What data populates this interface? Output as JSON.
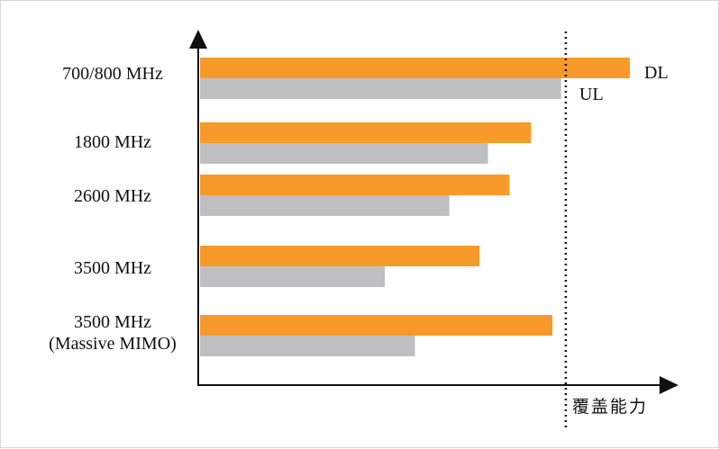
{
  "chart_data": {
    "type": "bar",
    "orientation": "horizontal",
    "categories": [
      "700/800 MHz",
      "1800 MHz",
      "2600 MHz",
      "3500 MHz",
      "3500 MHz\n(Massive MIMO)"
    ],
    "series": [
      {
        "name": "DL",
        "color": "#f79a2b",
        "values": [
          100,
          77,
          72,
          65,
          82
        ]
      },
      {
        "name": "UL",
        "color": "#bfbfc1",
        "values": [
          84,
          67,
          58,
          43,
          50
        ]
      }
    ],
    "reference_line": {
      "value": 85,
      "style": "dotted"
    },
    "xlabel": "覆盖能力",
    "ylabel": "",
    "xlim": [
      0,
      100
    ],
    "grid": false,
    "legend": "inline-right-of-first-bars"
  }
}
